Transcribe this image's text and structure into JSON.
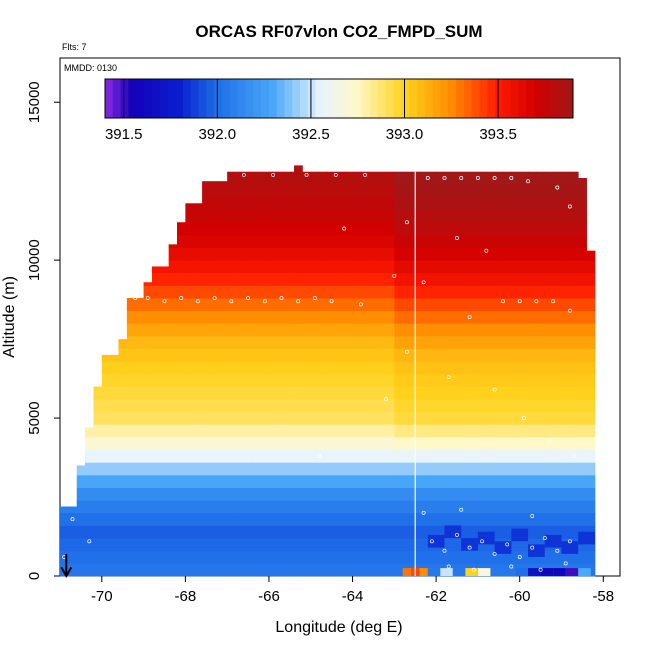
{
  "chart_data": {
    "type": "heatmap",
    "title": "ORCAS RF07vlon CO2_FMPD_SUM",
    "flts_label": "Flts: 7",
    "mmdd_label": "MMDD: 0130",
    "xlabel": "Longitude (deg E)",
    "ylabel": "Altitude (m)",
    "xlim": [
      -71.0,
      -57.6
    ],
    "ylim": [
      0,
      16400
    ],
    "x_ticks": [
      -70,
      -68,
      -66,
      -64,
      -62,
      -60,
      -58
    ],
    "y_ticks": [
      0,
      5000,
      10000,
      15000
    ],
    "colorbar": {
      "range": [
        391.4,
        393.9
      ],
      "ticks": [
        391.5,
        392.0,
        392.5,
        393.0,
        393.5
      ],
      "tick_labels": [
        "391.5",
        "392.0",
        "392.5",
        "393.0",
        "393.5"
      ],
      "stops": [
        {
          "v": 391.4,
          "c": "#8a2be2"
        },
        {
          "v": 391.55,
          "c": "#1400b8"
        },
        {
          "v": 391.8,
          "c": "#0a1fd0"
        },
        {
          "v": 392.0,
          "c": "#1f6fe8"
        },
        {
          "v": 392.3,
          "c": "#4aa8f8"
        },
        {
          "v": 392.55,
          "c": "#e8f4ff"
        },
        {
          "v": 392.75,
          "c": "#fff8c8"
        },
        {
          "v": 393.0,
          "c": "#ffd21c"
        },
        {
          "v": 393.25,
          "c": "#ff8c00"
        },
        {
          "v": 393.5,
          "c": "#ff1a00"
        },
        {
          "v": 393.7,
          "c": "#d20000"
        },
        {
          "v": 393.9,
          "c": "#a01818"
        }
      ]
    },
    "profile": [
      {
        "alt": 0,
        "v": 392.05
      },
      {
        "alt": 1500,
        "v": 391.95
      },
      {
        "alt": 2600,
        "v": 392.15
      },
      {
        "alt": 3500,
        "v": 392.45
      },
      {
        "alt": 4200,
        "v": 392.7
      },
      {
        "alt": 5000,
        "v": 392.9
      },
      {
        "alt": 6500,
        "v": 393.0
      },
      {
        "alt": 7500,
        "v": 393.1
      },
      {
        "alt": 8500,
        "v": 393.3
      },
      {
        "alt": 9500,
        "v": 393.5
      },
      {
        "alt": 10500,
        "v": 393.65
      },
      {
        "alt": 11500,
        "v": 393.75
      },
      {
        "alt": 13000,
        "v": 393.85
      }
    ],
    "coverage_top": [
      {
        "lon": -71.0,
        "alt": 2200
      },
      {
        "lon": -70.6,
        "alt": 3500
      },
      {
        "lon": -70.4,
        "alt": 4700
      },
      {
        "lon": -70.2,
        "alt": 6000
      },
      {
        "lon": -69.9,
        "alt": 7000
      },
      {
        "lon": -69.6,
        "alt": 7500
      },
      {
        "lon": -69.4,
        "alt": 8800
      },
      {
        "lon": -69.0,
        "alt": 9300
      },
      {
        "lon": -68.8,
        "alt": 9800
      },
      {
        "lon": -68.4,
        "alt": 10500
      },
      {
        "lon": -68.2,
        "alt": 11200
      },
      {
        "lon": -68.0,
        "alt": 11800
      },
      {
        "lon": -67.6,
        "alt": 12500
      },
      {
        "lon": -67.0,
        "alt": 12800
      },
      {
        "lon": -65.6,
        "alt": 12800
      },
      {
        "lon": -65.4,
        "alt": 13000
      },
      {
        "lon": -65.2,
        "alt": 12800
      },
      {
        "lon": -62.6,
        "alt": 12800
      },
      {
        "lon": -58.6,
        "alt": 12600
      },
      {
        "lon": -58.4,
        "alt": 10300
      },
      {
        "lon": -58.2,
        "alt": 1300
      }
    ],
    "flight_track_lon": -62.5,
    "observations": [
      {
        "lon": -69.5,
        "alt": 8700
      },
      {
        "lon": -69.2,
        "alt": 8800
      },
      {
        "lon": -68.9,
        "alt": 8800
      },
      {
        "lon": -68.5,
        "alt": 8700
      },
      {
        "lon": -68.1,
        "alt": 8800
      },
      {
        "lon": -67.7,
        "alt": 8700
      },
      {
        "lon": -67.3,
        "alt": 8800
      },
      {
        "lon": -66.9,
        "alt": 8700
      },
      {
        "lon": -66.5,
        "alt": 8800
      },
      {
        "lon": -66.1,
        "alt": 8700
      },
      {
        "lon": -65.7,
        "alt": 8800
      },
      {
        "lon": -65.3,
        "alt": 8700
      },
      {
        "lon": -64.9,
        "alt": 8800
      },
      {
        "lon": -64.5,
        "alt": 8700
      },
      {
        "lon": -63.8,
        "alt": 8600
      },
      {
        "lon": -67.4,
        "alt": 12700
      },
      {
        "lon": -66.6,
        "alt": 12700
      },
      {
        "lon": -65.9,
        "alt": 12700
      },
      {
        "lon": -65.1,
        "alt": 12700
      },
      {
        "lon": -64.4,
        "alt": 12700
      },
      {
        "lon": -63.7,
        "alt": 12700
      },
      {
        "lon": -62.2,
        "alt": 12600
      },
      {
        "lon": -61.8,
        "alt": 12600
      },
      {
        "lon": -61.4,
        "alt": 12600
      },
      {
        "lon": -61.0,
        "alt": 12600
      },
      {
        "lon": -60.6,
        "alt": 12600
      },
      {
        "lon": -60.2,
        "alt": 12600
      },
      {
        "lon": -59.8,
        "alt": 12500
      },
      {
        "lon": -59.1,
        "alt": 12300
      },
      {
        "lon": -58.8,
        "alt": 11700
      },
      {
        "lon": -64.2,
        "alt": 11000
      },
      {
        "lon": -62.7,
        "alt": 11200
      },
      {
        "lon": -63.0,
        "alt": 9500
      },
      {
        "lon": -62.3,
        "alt": 9300
      },
      {
        "lon": -61.5,
        "alt": 10700
      },
      {
        "lon": -60.8,
        "alt": 10300
      },
      {
        "lon": -60.4,
        "alt": 8700
      },
      {
        "lon": -60.0,
        "alt": 8700
      },
      {
        "lon": -59.6,
        "alt": 8700
      },
      {
        "lon": -59.2,
        "alt": 8700
      },
      {
        "lon": -58.8,
        "alt": 8400
      },
      {
        "lon": -61.2,
        "alt": 8200
      },
      {
        "lon": -62.7,
        "alt": 7100
      },
      {
        "lon": -61.7,
        "alt": 6300
      },
      {
        "lon": -60.6,
        "alt": 5900
      },
      {
        "lon": -59.9,
        "alt": 5000
      },
      {
        "lon": -59.3,
        "alt": 4300
      },
      {
        "lon": -58.7,
        "alt": 3800
      },
      {
        "lon": -63.2,
        "alt": 5600
      },
      {
        "lon": -64.8,
        "alt": 3800
      },
      {
        "lon": -70.7,
        "alt": 1800
      },
      {
        "lon": -70.3,
        "alt": 1100
      },
      {
        "lon": -70.9,
        "alt": 600
      },
      {
        "lon": -62.1,
        "alt": 1100
      },
      {
        "lon": -61.8,
        "alt": 800
      },
      {
        "lon": -61.5,
        "alt": 1300
      },
      {
        "lon": -61.2,
        "alt": 900
      },
      {
        "lon": -60.9,
        "alt": 1100
      },
      {
        "lon": -60.6,
        "alt": 700
      },
      {
        "lon": -60.3,
        "alt": 1000
      },
      {
        "lon": -60.0,
        "alt": 600
      },
      {
        "lon": -59.7,
        "alt": 900
      },
      {
        "lon": -59.4,
        "alt": 1200
      },
      {
        "lon": -59.1,
        "alt": 800
      },
      {
        "lon": -58.8,
        "alt": 1100
      },
      {
        "lon": -61.7,
        "alt": 300
      },
      {
        "lon": -61.1,
        "alt": 200
      },
      {
        "lon": -60.2,
        "alt": 300
      },
      {
        "lon": -59.5,
        "alt": 200
      },
      {
        "lon": -58.9,
        "alt": 400
      },
      {
        "lon": -62.3,
        "alt": 2000
      },
      {
        "lon": -61.4,
        "alt": 2100
      },
      {
        "lon": -59.7,
        "alt": 1900
      }
    ],
    "surface_cells": [
      {
        "lon": -62.8,
        "v": 393.3
      },
      {
        "lon": -62.6,
        "v": 393.4
      },
      {
        "lon": -62.4,
        "v": 393.25
      },
      {
        "lon": -62.2,
        "v": 392.05
      },
      {
        "lon": -61.9,
        "v": 392.5
      },
      {
        "lon": -61.6,
        "v": 392.05
      },
      {
        "lon": -61.3,
        "v": 393.0
      },
      {
        "lon": -61.0,
        "v": 392.7
      },
      {
        "lon": -60.7,
        "v": 392.05
      },
      {
        "lon": -60.4,
        "v": 392.05
      },
      {
        "lon": -60.1,
        "v": 392.0
      },
      {
        "lon": -59.8,
        "v": 391.7
      },
      {
        "lon": -59.5,
        "v": 391.6
      },
      {
        "lon": -59.2,
        "v": 391.6
      },
      {
        "lon": -58.9,
        "v": 391.5
      },
      {
        "lon": -58.6,
        "v": 392.3
      }
    ],
    "low_blue_patch": [
      {
        "lon": -62.2,
        "alt": 900
      },
      {
        "lon": -61.8,
        "alt": 1200
      },
      {
        "lon": -61.4,
        "alt": 800
      },
      {
        "lon": -61.0,
        "alt": 1000
      },
      {
        "lon": -60.6,
        "alt": 700
      },
      {
        "lon": -60.2,
        "alt": 1100
      },
      {
        "lon": -59.8,
        "alt": 600
      },
      {
        "lon": -59.4,
        "alt": 900
      },
      {
        "lon": -59.0,
        "alt": 700
      },
      {
        "lon": -58.6,
        "alt": 1000
      }
    ],
    "arrow_marker_lon": -70.85
  }
}
